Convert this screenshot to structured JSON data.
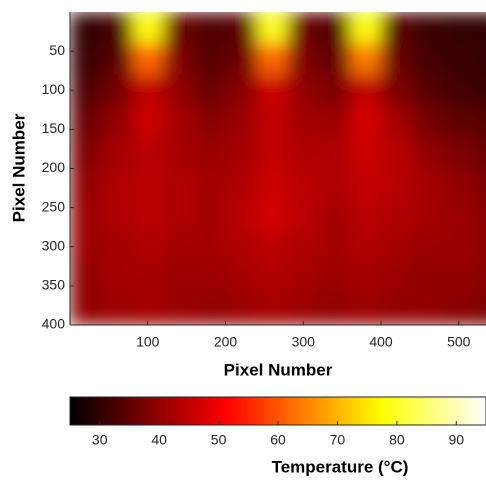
{
  "chart_data": {
    "type": "heatmap",
    "colormap": "hot",
    "xlabel": "Pixel Number",
    "ylabel": "Pixel Number",
    "colorbar_label": "Temperature (°C)",
    "xlim": [
      0,
      535
    ],
    "ylim": [
      0,
      400
    ],
    "y_reversed": true,
    "xticks": [
      100,
      200,
      300,
      400,
      500
    ],
    "yticks": [
      50,
      100,
      150,
      200,
      250,
      300,
      350,
      400
    ],
    "clim": [
      25,
      95
    ],
    "cticks": [
      30,
      40,
      50,
      60,
      70,
      80,
      90
    ],
    "x": [
      20,
      60,
      100,
      140,
      180,
      220,
      260,
      300,
      340,
      380,
      420,
      460,
      500,
      540
    ],
    "y": [
      20,
      60,
      100,
      140,
      180,
      220,
      260,
      300,
      340,
      380
    ],
    "z": [
      [
        30,
        32,
        78,
        36,
        33,
        34,
        80,
        36,
        33,
        78,
        34,
        31,
        30,
        30
      ],
      [
        31,
        34,
        62,
        38,
        34,
        36,
        62,
        38,
        35,
        64,
        36,
        32,
        31,
        30
      ],
      [
        33,
        37,
        45,
        40,
        36,
        39,
        46,
        40,
        38,
        45,
        38,
        34,
        32,
        31
      ],
      [
        36,
        40,
        46,
        42,
        39,
        41,
        45,
        42,
        41,
        47,
        42,
        37,
        35,
        34
      ],
      [
        38,
        42,
        44,
        42,
        41,
        42,
        45,
        43,
        43,
        46,
        44,
        40,
        38,
        36
      ],
      [
        40,
        43,
        44,
        43,
        42,
        43,
        46,
        44,
        43,
        45,
        44,
        42,
        40,
        38
      ],
      [
        41,
        43,
        44,
        43,
        42,
        44,
        47,
        44,
        42,
        44,
        43,
        42,
        41,
        39
      ],
      [
        41,
        42,
        43,
        42,
        42,
        43,
        44,
        43,
        42,
        43,
        42,
        41,
        41,
        40
      ],
      [
        40,
        42,
        42,
        41,
        41,
        42,
        43,
        42,
        41,
        42,
        41,
        40,
        40,
        39
      ],
      [
        40,
        41,
        42,
        41,
        40,
        41,
        42,
        41,
        40,
        41,
        40,
        40,
        39,
        38
      ]
    ]
  }
}
